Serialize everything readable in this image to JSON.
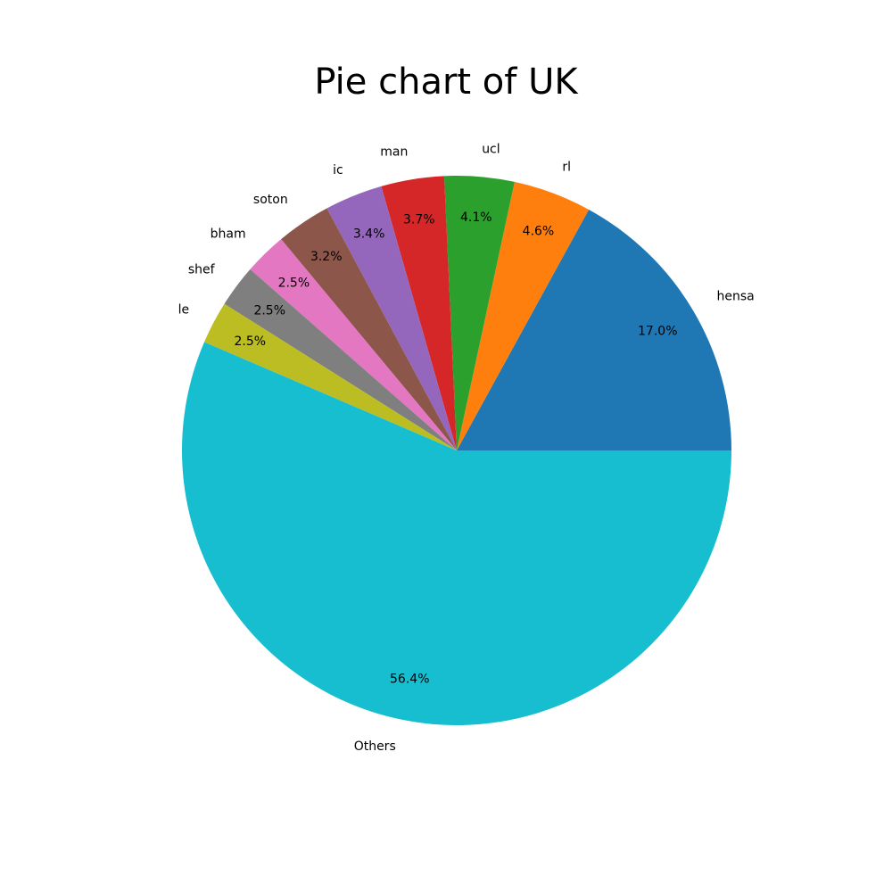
{
  "chart_data": {
    "type": "pie",
    "title": "Pie chart of UK",
    "categories": [
      "hensa",
      "rl",
      "ucl",
      "man",
      "ic",
      "soton",
      "bham",
      "shef",
      "le",
      "Others"
    ],
    "values": [
      17.0,
      4.6,
      4.1,
      3.7,
      3.4,
      3.2,
      2.5,
      2.5,
      2.5,
      56.4
    ],
    "percent_labels": [
      "17.0%",
      "4.6%",
      "4.1%",
      "3.7%",
      "3.4%",
      "3.2%",
      "2.5%",
      "2.5%",
      "2.5%",
      "56.4%"
    ],
    "colors": [
      "#1f77b4",
      "#ff7f0e",
      "#2ca02c",
      "#d62728",
      "#9467bd",
      "#8c564b",
      "#e377c2",
      "#7f7f7f",
      "#bcbd22",
      "#17becf"
    ],
    "start_angle_deg": 0,
    "direction": "counterclockwise"
  }
}
